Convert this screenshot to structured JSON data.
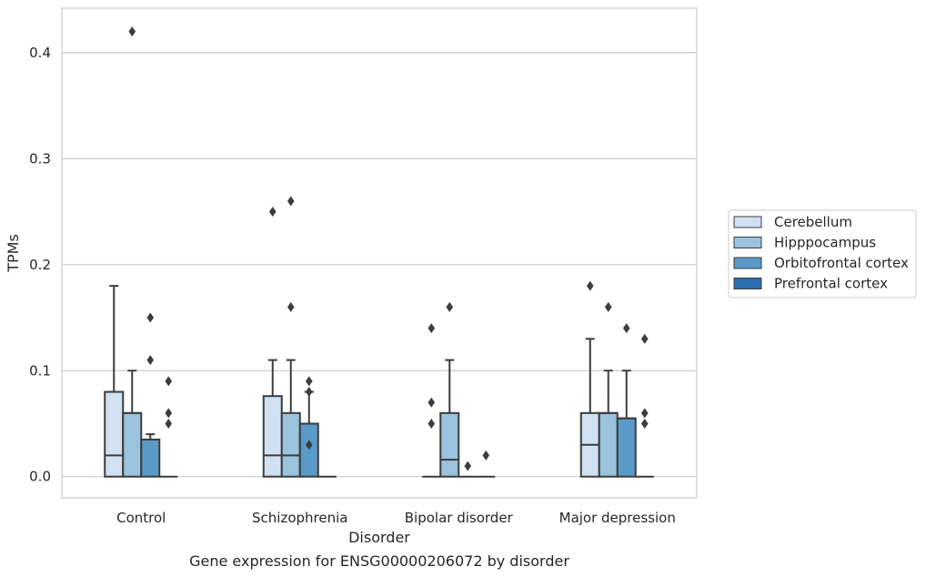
{
  "chart_data": {
    "type": "box",
    "title": "Gene expression for ENSG00000206072 by disorder",
    "xlabel": "Disorder",
    "ylabel": "TPMs",
    "ylim": [
      -0.02,
      0.442
    ],
    "yticks": [
      0.0,
      0.1,
      0.2,
      0.3,
      0.4
    ],
    "ytick_labels": [
      "0.0",
      "0.1",
      "0.2",
      "0.3",
      "0.4"
    ],
    "grid": "horizontal",
    "legend_position": "right",
    "categories": [
      "Control",
      "Schizophrenia",
      "Bipolar disorder",
      "Major depression"
    ],
    "series": [
      {
        "name": "Cerebellum",
        "color": "#d0e1f2",
        "boxes": [
          {
            "q1": 0.0,
            "median": 0.02,
            "q3": 0.08,
            "whisker_low": 0.0,
            "whisker_high": 0.18,
            "outliers": []
          },
          {
            "q1": 0.0,
            "median": 0.02,
            "q3": 0.076,
            "whisker_low": 0.0,
            "whisker_high": 0.11,
            "outliers": [
              0.25
            ]
          },
          {
            "q1": 0.0,
            "median": 0.0,
            "q3": 0.0,
            "whisker_low": 0.0,
            "whisker_high": 0.0,
            "outliers": [
              0.05,
              0.07,
              0.14
            ]
          },
          {
            "q1": 0.0,
            "median": 0.03,
            "q3": 0.06,
            "whisker_low": 0.0,
            "whisker_high": 0.13,
            "outliers": [
              0.18
            ]
          }
        ]
      },
      {
        "name": "Hipppocampus",
        "color": "#9ac3de",
        "boxes": [
          {
            "q1": 0.0,
            "median": 0.06,
            "q3": 0.06,
            "whisker_low": 0.0,
            "whisker_high": 0.1,
            "outliers": [
              0.42
            ]
          },
          {
            "q1": 0.0,
            "median": 0.02,
            "q3": 0.06,
            "whisker_low": 0.0,
            "whisker_high": 0.11,
            "outliers": [
              0.16,
              0.26
            ]
          },
          {
            "q1": 0.0,
            "median": 0.016,
            "q3": 0.06,
            "whisker_low": 0.0,
            "whisker_high": 0.11,
            "outliers": [
              0.16
            ]
          },
          {
            "q1": 0.0,
            "median": 0.06,
            "q3": 0.06,
            "whisker_low": 0.0,
            "whisker_high": 0.1,
            "outliers": [
              0.16
            ]
          }
        ]
      },
      {
        "name": "Orbitofrontal cortex",
        "color": "#5a9ac9",
        "boxes": [
          {
            "q1": 0.0,
            "median": 0.035,
            "q3": 0.035,
            "whisker_low": 0.0,
            "whisker_high": 0.04,
            "outliers": [
              0.11,
              0.15
            ]
          },
          {
            "q1": 0.0,
            "median": 0.05,
            "q3": 0.05,
            "whisker_low": 0.0,
            "whisker_high": 0.08,
            "outliers": [
              0.03,
              0.08,
              0.09
            ]
          },
          {
            "q1": 0.0,
            "median": 0.0,
            "q3": 0.0,
            "whisker_low": 0.0,
            "whisker_high": 0.0,
            "outliers": [
              0.01
            ]
          },
          {
            "q1": 0.0,
            "median": 0.055,
            "q3": 0.055,
            "whisker_low": 0.0,
            "whisker_high": 0.1,
            "outliers": [
              0.14
            ]
          }
        ]
      },
      {
        "name": "Prefrontal cortex",
        "color": "#2b6fae",
        "boxes": [
          {
            "q1": 0.0,
            "median": 0.0,
            "q3": 0.0,
            "whisker_low": 0.0,
            "whisker_high": 0.0,
            "outliers": [
              0.05,
              0.06,
              0.09
            ]
          },
          {
            "q1": 0.0,
            "median": 0.0,
            "q3": 0.0,
            "whisker_low": 0.0,
            "whisker_high": 0.0,
            "outliers": []
          },
          {
            "q1": 0.0,
            "median": 0.0,
            "q3": 0.0,
            "whisker_low": 0.0,
            "whisker_high": 0.0,
            "outliers": [
              0.02
            ]
          },
          {
            "q1": 0.0,
            "median": 0.0,
            "q3": 0.0,
            "whisker_low": 0.0,
            "whisker_high": 0.0,
            "outliers": [
              0.05,
              0.06,
              0.13
            ]
          }
        ]
      }
    ]
  }
}
